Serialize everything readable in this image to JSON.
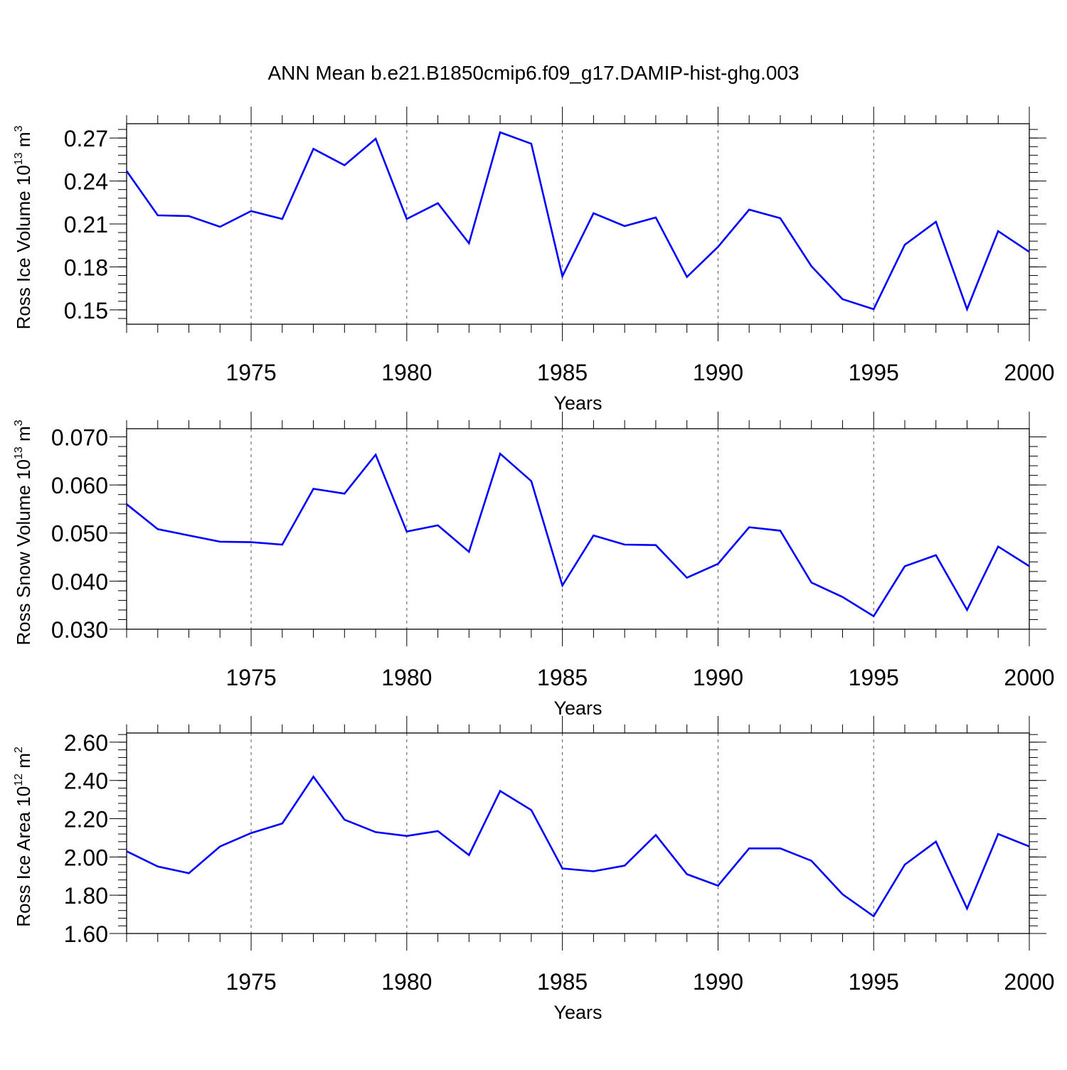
{
  "title": "ANN Mean b.e21.B1850cmip6.f09_g17.DAMIP-hist-ghg.003",
  "line_color": "#0000ff",
  "chart_data": [
    {
      "type": "line",
      "ylabel": "Ross Ice Volume 10",
      "ylabel_exp": "13",
      "ylabel_unit": " m",
      "ylabel_unit_exp": "3",
      "xlabel": "Years",
      "xlim": [
        1971,
        2000
      ],
      "ylim": [
        0.14,
        0.28
      ],
      "ytick_values": [
        0.15,
        0.18,
        0.21,
        0.24,
        0.27
      ],
      "ytick_labels": [
        "0.15",
        "0.18",
        "0.21",
        "0.24",
        "0.27"
      ],
      "xtick_values": [
        1975,
        1980,
        1985,
        1990,
        1995,
        2000
      ],
      "xtick_labels": [
        "1975",
        "1980",
        "1985",
        "1990",
        "1995",
        "2000"
      ],
      "x": [
        1971,
        1972,
        1973,
        1974,
        1975,
        1976,
        1977,
        1978,
        1979,
        1980,
        1981,
        1982,
        1983,
        1984,
        1985,
        1986,
        1987,
        1988,
        1989,
        1990,
        1991,
        1992,
        1993,
        1994,
        1995,
        1996,
        1997,
        1998,
        1999,
        2000
      ],
      "y": [
        0.247,
        0.216,
        0.2155,
        0.208,
        0.219,
        0.2135,
        0.2625,
        0.251,
        0.2695,
        0.2135,
        0.2245,
        0.1965,
        0.274,
        0.266,
        0.1735,
        0.2175,
        0.2085,
        0.2145,
        0.173,
        0.194,
        0.22,
        0.214,
        0.1805,
        0.1575,
        0.1505,
        0.1955,
        0.2115,
        0.1505,
        0.205,
        0.1905
      ]
    },
    {
      "type": "line",
      "ylabel": "Ross Snow Volume 10",
      "ylabel_exp": "13",
      "ylabel_unit": " m",
      "ylabel_unit_exp": "3",
      "xlabel": "Years",
      "xlim": [
        1971,
        2000
      ],
      "ylim": [
        0.03,
        0.0717
      ],
      "ytick_values": [
        0.03,
        0.04,
        0.05,
        0.06,
        0.07
      ],
      "ytick_labels": [
        "0.030",
        "0.040",
        "0.050",
        "0.060",
        "0.070"
      ],
      "xtick_values": [
        1975,
        1980,
        1985,
        1990,
        1995,
        2000
      ],
      "xtick_labels": [
        "1975",
        "1980",
        "1985",
        "1990",
        "1995",
        "2000"
      ],
      "x": [
        1971,
        1972,
        1973,
        1974,
        1975,
        1976,
        1977,
        1978,
        1979,
        1980,
        1981,
        1982,
        1983,
        1984,
        1985,
        1986,
        1987,
        1988,
        1989,
        1990,
        1991,
        1992,
        1993,
        1994,
        1995,
        1996,
        1997,
        1998,
        1999,
        2000
      ],
      "y": [
        0.056,
        0.0508,
        0.0495,
        0.0482,
        0.0481,
        0.0476,
        0.0592,
        0.0582,
        0.0663,
        0.0503,
        0.0516,
        0.0461,
        0.0665,
        0.0608,
        0.0391,
        0.0495,
        0.0476,
        0.0475,
        0.0407,
        0.0436,
        0.0512,
        0.0505,
        0.0397,
        0.0367,
        0.0327,
        0.0431,
        0.0454,
        0.034,
        0.0472,
        0.0431
      ]
    },
    {
      "type": "line",
      "ylabel": "Ross Ice Area 10",
      "ylabel_exp": "12",
      "ylabel_unit": " m",
      "ylabel_unit_exp": "2",
      "xlabel": "Years",
      "xlim": [
        1971,
        2000
      ],
      "ylim": [
        1.6,
        2.648
      ],
      "ytick_values": [
        1.6,
        1.8,
        2.0,
        2.2,
        2.4,
        2.6
      ],
      "ytick_labels": [
        "1.60",
        "1.80",
        "2.00",
        "2.20",
        "2.40",
        "2.60"
      ],
      "xtick_values": [
        1975,
        1980,
        1985,
        1990,
        1995,
        2000
      ],
      "xtick_labels": [
        "1975",
        "1980",
        "1985",
        "1990",
        "1995",
        "2000"
      ],
      "x": [
        1971,
        1972,
        1973,
        1974,
        1975,
        1976,
        1977,
        1978,
        1979,
        1980,
        1981,
        1982,
        1983,
        1984,
        1985,
        1986,
        1987,
        1988,
        1989,
        1990,
        1991,
        1992,
        1993,
        1994,
        1995,
        1996,
        1997,
        1998,
        1999,
        2000
      ],
      "y": [
        2.03,
        1.95,
        1.915,
        2.055,
        2.125,
        2.175,
        2.42,
        2.195,
        2.13,
        2.11,
        2.135,
        2.01,
        2.345,
        2.245,
        1.94,
        1.925,
        1.955,
        2.115,
        1.91,
        1.85,
        2.045,
        2.045,
        1.98,
        1.805,
        1.69,
        1.96,
        2.08,
        1.73,
        2.12,
        2.055
      ]
    }
  ]
}
